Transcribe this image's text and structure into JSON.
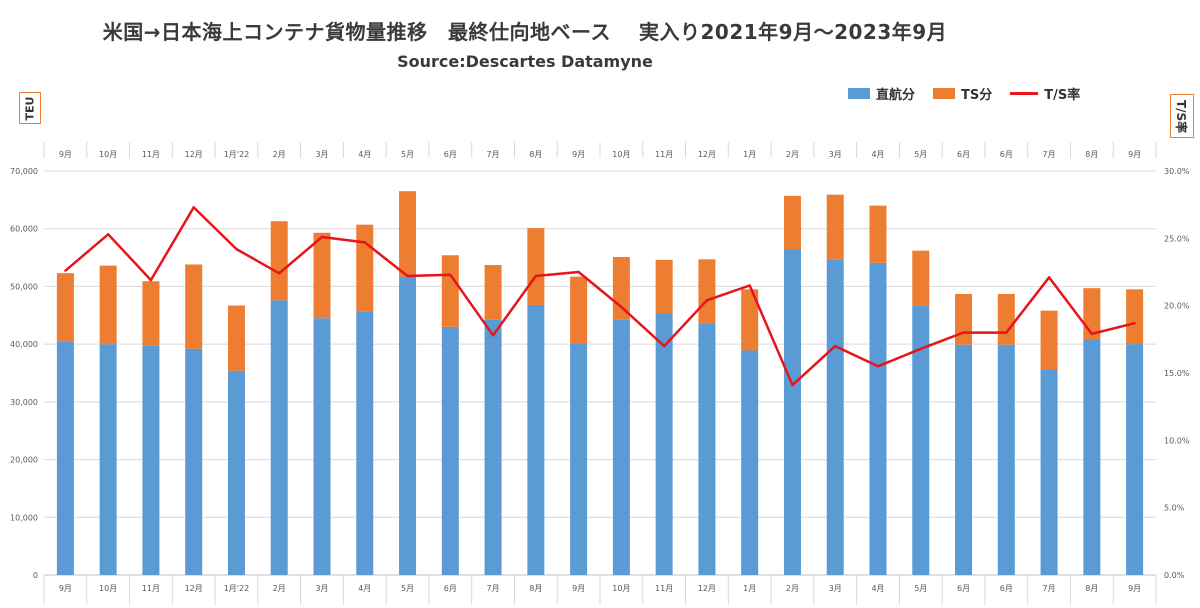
{
  "title": "米国→日本海上コンテナ貨物量推移　最終仕向地ベース　 実入り2021年9月～2023年9月",
  "subtitle": "Source:Descartes Datamyne",
  "left_unit": "TEU",
  "right_unit": "T/S率",
  "colors": {
    "direct": "#5b9bd5",
    "ts": "#ed7d31",
    "ratio": "#e8141b",
    "grid": "#d9d9d9",
    "axis": "#595959"
  },
  "chart_data": {
    "type": "bar",
    "stacked": true,
    "categories": [
      "9月",
      "10月",
      "11月",
      "12月",
      "1月'22",
      "2月",
      "3月",
      "4月",
      "5月",
      "6月",
      "7月",
      "8月",
      "9月",
      "10月",
      "11月",
      "12月",
      "1月",
      "2月",
      "3月",
      "4月",
      "5月",
      "6月",
      "6月",
      "7月",
      "8月",
      "9月"
    ],
    "series": [
      {
        "name": "直航分",
        "axis": "left",
        "values": [
          40500,
          40000,
          39800,
          39200,
          35400,
          47600,
          44500,
          45700,
          51700,
          43000,
          44200,
          46800,
          40100,
          44200,
          45300,
          43600,
          38900,
          56400,
          54700,
          54100,
          46600,
          39900,
          39900,
          35600,
          40800,
          40000
        ]
      },
      {
        "name": "TS分",
        "axis": "left",
        "values": [
          11800,
          13600,
          11100,
          14600,
          11300,
          13700,
          14800,
          15000,
          14800,
          12400,
          9500,
          13300,
          11600,
          10900,
          9300,
          11100,
          10600,
          9300,
          11200,
          9900,
          9600,
          8800,
          8800,
          10200,
          8900,
          9500
        ]
      },
      {
        "name": "T/S率",
        "type": "line",
        "axis": "right",
        "values": [
          22.6,
          25.3,
          21.9,
          27.3,
          24.2,
          22.4,
          25.1,
          24.7,
          22.2,
          22.3,
          17.8,
          22.2,
          22.5,
          19.9,
          17.0,
          20.4,
          21.5,
          14.1,
          17.0,
          15.5,
          16.8,
          18.0,
          18.0,
          22.1,
          17.9,
          18.7
        ]
      }
    ],
    "left_axis": {
      "min": 0,
      "max": 70000,
      "step": 10000,
      "tick_labels": [
        "0",
        "10,000",
        "20,000",
        "30,000",
        "40,000",
        "50,000",
        "60,000",
        "70,000"
      ]
    },
    "right_axis": {
      "min": 0,
      "max": 30,
      "step": 5,
      "tick_labels": [
        "0.0%",
        "5.0%",
        "10.0%",
        "15.0%",
        "20.0%",
        "25.0%",
        "30.0%"
      ]
    },
    "legend": [
      "直航分",
      "TS分",
      "T/S率"
    ],
    "legend_position": "top-right",
    "grid": true
  }
}
